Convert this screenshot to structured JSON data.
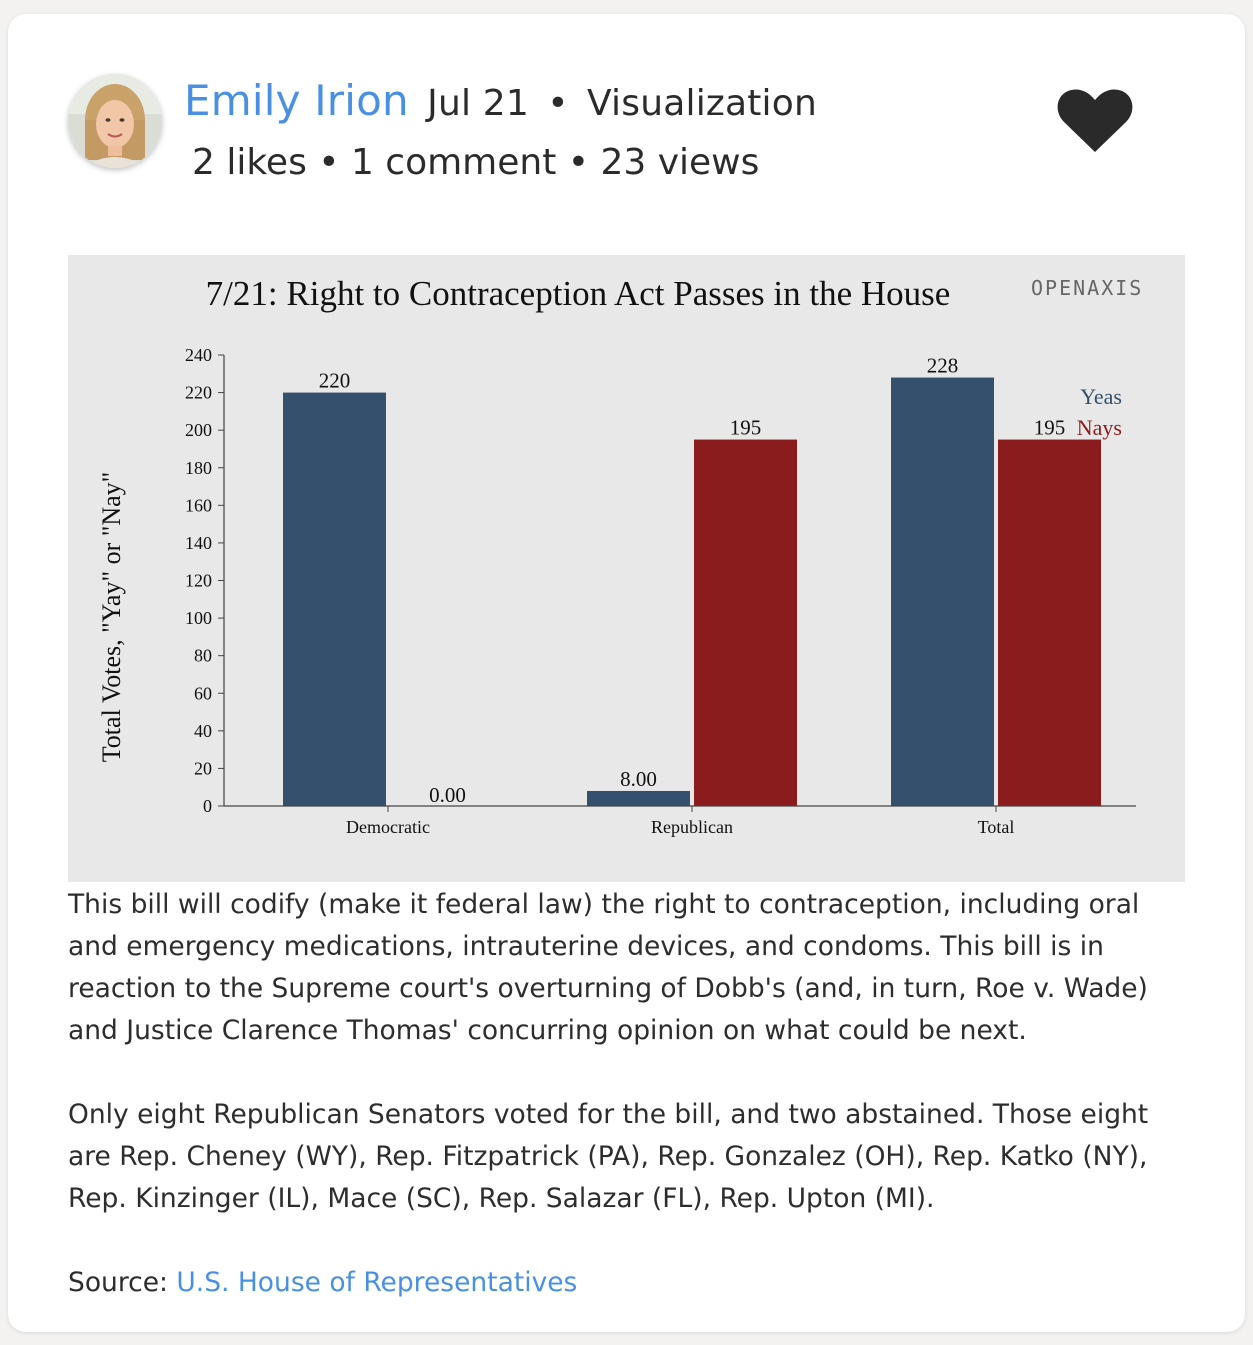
{
  "post": {
    "author": "Emily Irion",
    "date": "Jul 21",
    "separator": "•",
    "category": "Visualization",
    "stats": "2 likes • 1 comment • 23 views"
  },
  "colors": {
    "yeas": "#34506d",
    "nays": "#8b1c1e",
    "link": "#4a90e2"
  },
  "chart_data": {
    "type": "bar",
    "title": "7/21: Right to Contraception Act Passes in the House",
    "watermark": "OPENAXIS",
    "ylabel": "Total Votes, \"Yay\" or \"Nay\"",
    "xlabel": "",
    "categories": [
      "Democratic",
      "Republican",
      "Total"
    ],
    "series": [
      {
        "name": "Yeas",
        "values": [
          220,
          8,
          228
        ],
        "labels": [
          "220",
          "8.00",
          "228"
        ],
        "color": "#34506d"
      },
      {
        "name": "Nays",
        "values": [
          0,
          195,
          195
        ],
        "labels": [
          "0.00",
          "195",
          "195"
        ],
        "color": "#8b1c1e"
      }
    ],
    "ylim": [
      0,
      240
    ],
    "yticks": [
      0,
      20,
      40,
      60,
      80,
      100,
      120,
      140,
      160,
      180,
      200,
      220,
      240
    ],
    "legend_position": "top-right",
    "grid": false
  },
  "description": {
    "paragraph1": "This bill will codify (make it federal law) the right to contraception, including oral and emergency medications, intrauterine devices, and condoms. This bill is in reaction to the Supreme court's overturning of Dobb's (and, in turn, Roe v. Wade) and Justice Clarence Thomas' concurring opinion on what could be next.",
    "paragraph2": "Only eight Republican Senators voted for the bill, and two abstained. Those eight are Rep. Cheney (WY), Rep. Fitzpatrick (PA), Rep. Gonzalez (OH), Rep. Katko (NY), Rep. Kinzinger (IL), Mace (SC), Rep. Salazar (FL), Rep. Upton (MI)."
  },
  "source": {
    "label": "Source:",
    "link_text": "U.S. House of Representatives"
  }
}
